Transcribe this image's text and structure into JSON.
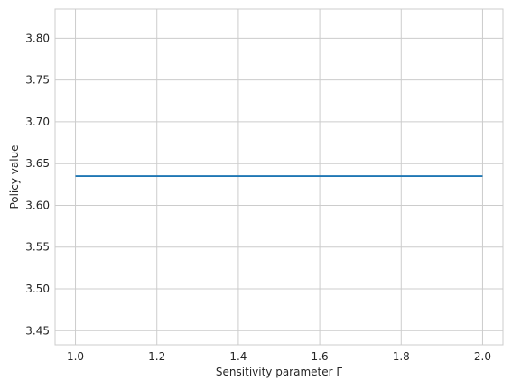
{
  "chart_data": {
    "type": "line",
    "xlabel": "Sensitivity parameter Γ",
    "ylabel": "Policy value",
    "xlim": [
      0.95,
      2.05
    ],
    "ylim": [
      3.433,
      3.835
    ],
    "xticks": [
      1.0,
      1.2,
      1.4,
      1.6,
      1.8,
      2.0
    ],
    "xtick_labels": [
      "1.0",
      "1.2",
      "1.4",
      "1.6",
      "1.8",
      "2.0"
    ],
    "yticks": [
      3.45,
      3.5,
      3.55,
      3.6,
      3.65,
      3.7,
      3.75,
      3.8
    ],
    "ytick_labels": [
      "3.45",
      "3.50",
      "3.55",
      "3.60",
      "3.65",
      "3.70",
      "3.75",
      "3.80"
    ],
    "grid": true,
    "series": [
      {
        "color": "#1f77b4",
        "x": [
          1.0,
          2.0
        ],
        "y": [
          3.635,
          3.635
        ]
      }
    ],
    "colors": {
      "grid": "#cccccc",
      "frame": "#cccccc",
      "text": "#262626"
    }
  }
}
